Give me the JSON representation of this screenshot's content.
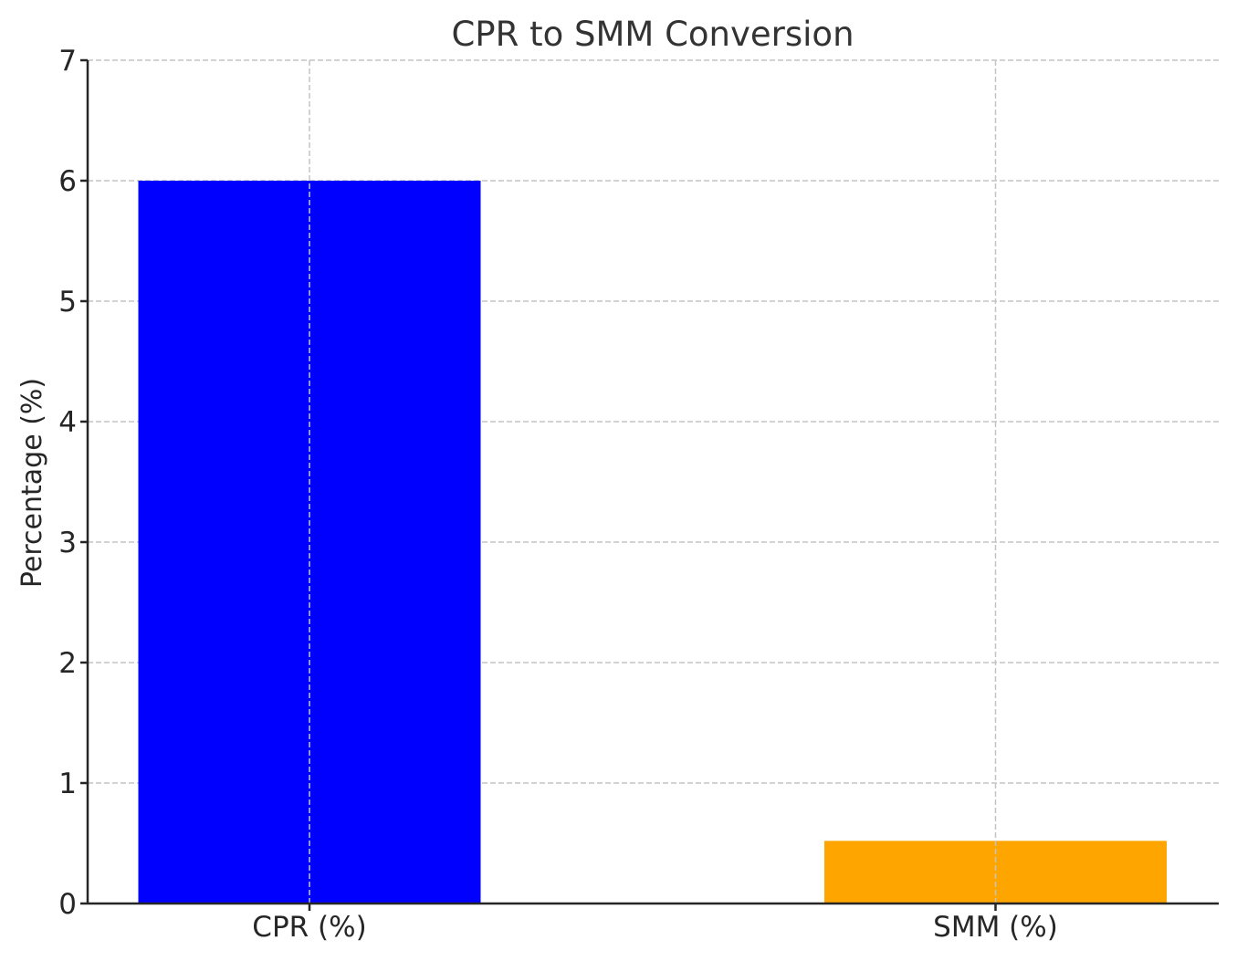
{
  "chart_data": {
    "type": "bar",
    "title": "CPR to SMM Conversion",
    "xlabel": "",
    "ylabel": "Percentage (%)",
    "categories": [
      "CPR (%)",
      "SMM (%)"
    ],
    "values": [
      6.0,
      0.52
    ],
    "colors": [
      "#0000ff",
      "#ffa500"
    ],
    "ylim": [
      0,
      7
    ],
    "yticks": [
      0,
      1,
      2,
      3,
      4,
      5,
      6,
      7
    ],
    "grid": true
  }
}
